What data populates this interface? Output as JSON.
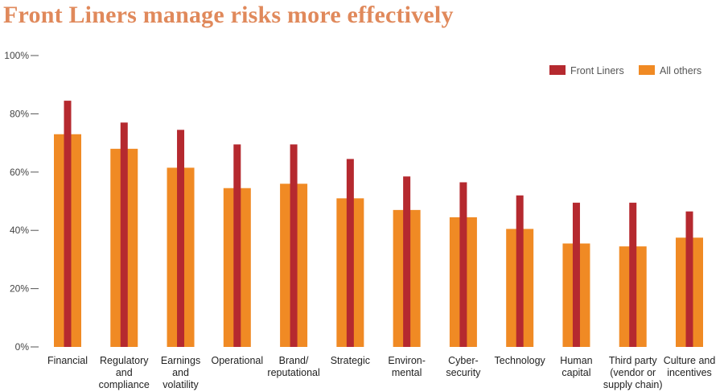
{
  "title": "Front Liners manage risks more effectively",
  "colors": {
    "front_liners": "#b5292f",
    "all_others": "#f08a24",
    "axis": "#555555"
  },
  "chart_data": {
    "type": "bar",
    "title": "Front Liners manage risks more effectively",
    "xlabel": "",
    "ylabel": "",
    "ylim": [
      0,
      100
    ],
    "yticks": [
      "0%",
      "20%",
      "40%",
      "60%",
      "80%",
      "100%"
    ],
    "grid": false,
    "legend_position": "top-right",
    "categories": [
      [
        "Financial"
      ],
      [
        "Regulatory",
        "and",
        "compliance"
      ],
      [
        "Earnings",
        "and",
        "volatility"
      ],
      [
        "Operational"
      ],
      [
        "Brand/",
        "reputational"
      ],
      [
        "Strategic"
      ],
      [
        "Environ-",
        "mental"
      ],
      [
        "Cyber-",
        "security"
      ],
      [
        "Technology"
      ],
      [
        "Human",
        "capital"
      ],
      [
        "Third party",
        "(vendor or",
        "supply chain)"
      ],
      [
        "Culture and",
        "incentives"
      ]
    ],
    "series": [
      {
        "name": "Front Liners",
        "values": [
          84.5,
          77,
          74.5,
          69.5,
          69.5,
          64.5,
          58.5,
          56.5,
          52,
          49.5,
          49.5,
          46.5
        ]
      },
      {
        "name": "All others",
        "values": [
          73,
          68,
          61.5,
          54.5,
          56,
          51,
          47,
          44.5,
          40.5,
          35.5,
          34.5,
          37.5
        ]
      }
    ]
  }
}
